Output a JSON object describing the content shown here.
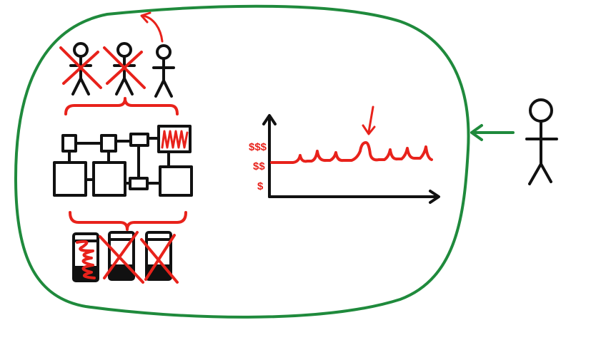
{
  "colors": {
    "ink": "#111111",
    "accent_red": "#e8221b",
    "boundary_green": "#1f8a3c",
    "background": "#ffffff"
  },
  "diagram": {
    "left_people": [
      {
        "icon": "stick-figure-icon",
        "crossed_out": true
      },
      {
        "icon": "stick-figure-icon",
        "crossed_out": true
      },
      {
        "icon": "stick-figure-icon",
        "crossed_out": false
      }
    ],
    "servers": [
      {
        "icon": "server-icon",
        "overloaded": true,
        "crossed_out": false
      },
      {
        "icon": "server-icon",
        "overloaded": false,
        "crossed_out": true
      },
      {
        "icon": "server-icon",
        "overloaded": false,
        "crossed_out": true
      }
    ],
    "y_tick_labels": [
      "$$$",
      "$$",
      "$"
    ],
    "spike_indicator": "down-arrow-icon",
    "outside_person": "stick-figure-icon",
    "entry_arrow": "left-arrow-icon",
    "boundary": "blob-boundary"
  }
}
